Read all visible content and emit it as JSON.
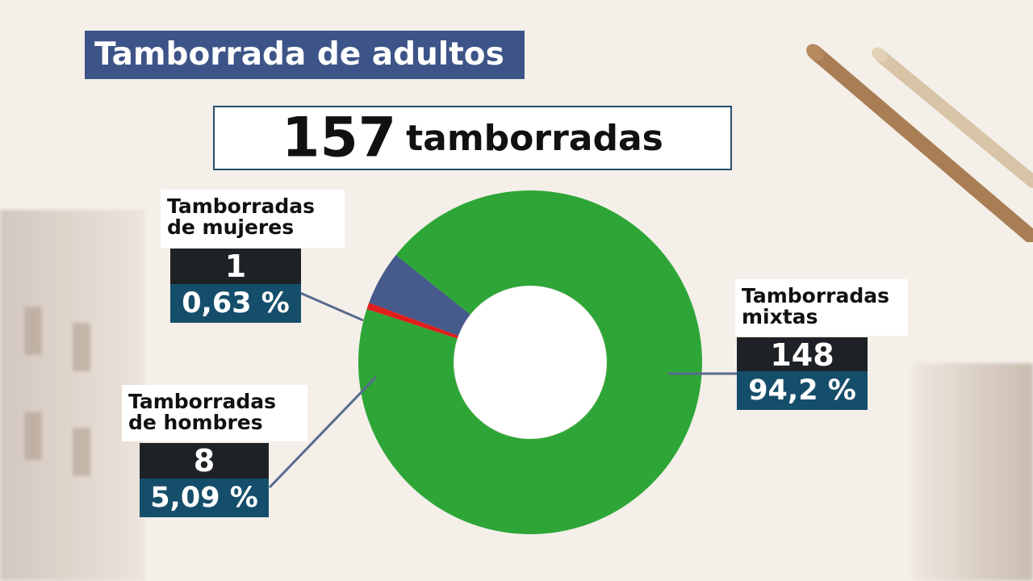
{
  "title": "Tamborrada de adultos",
  "total": {
    "number": "157",
    "word": "tamborradas"
  },
  "labels": {
    "mujeres": {
      "line1": "Tamborradas",
      "line2": "de mujeres",
      "count": "1",
      "pct": "0,63 %"
    },
    "hombres": {
      "line1": "Tamborradas",
      "line2": "de hombres",
      "count": "8",
      "pct": "5,09 %"
    },
    "mixtas": {
      "line1": "Tamborradas",
      "line2": "mixtas",
      "count": "148",
      "pct": "94,2 %"
    }
  },
  "chart_data": {
    "type": "pie",
    "title": "Tamborrada de adultos",
    "total": 157,
    "categories": [
      "Tamborradas de mujeres",
      "Tamborradas de hombres",
      "Tamborradas mixtas"
    ],
    "values": [
      1,
      8,
      148
    ],
    "percentages": [
      0.63,
      5.09,
      94.2
    ],
    "colors": [
      "#e01e1e",
      "#465a8c",
      "#2ea637"
    ],
    "donut": true
  }
}
